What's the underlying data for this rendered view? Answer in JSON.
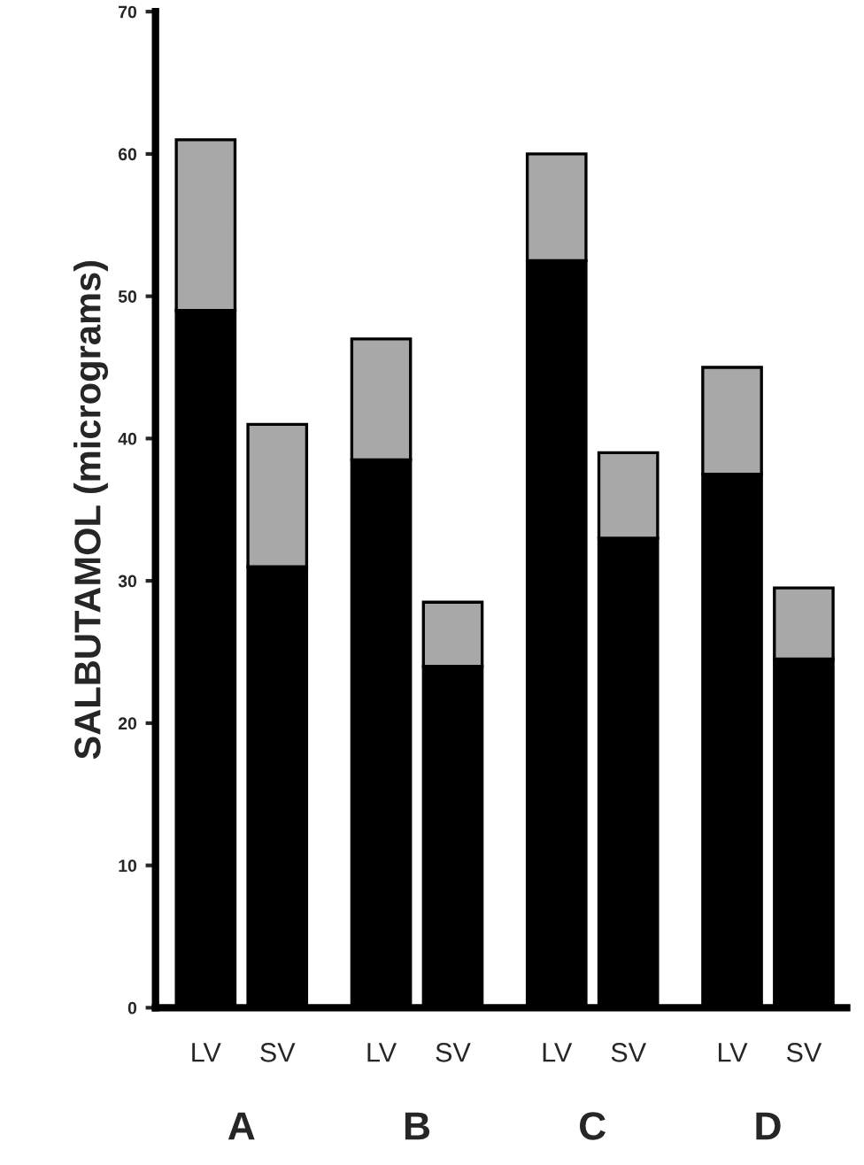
{
  "chart_data": {
    "type": "bar",
    "ylabel": "SALBUTAMOL (micrograms)",
    "categories": [
      "LV",
      "SV",
      "LV",
      "SV",
      "LV",
      "SV",
      "LV",
      "SV"
    ],
    "stacked": true,
    "series": [
      {
        "color": "#000000",
        "values": [
          49,
          31,
          38.5,
          24,
          52.5,
          33,
          37.5,
          24.5
        ]
      },
      {
        "color": "#a8a8a8",
        "values": [
          12,
          10,
          8.5,
          4.5,
          7.5,
          6,
          7.5,
          5
        ]
      }
    ],
    "annotations": [
      "A",
      "B",
      "C",
      "D"
    ],
    "ylim": [
      0,
      70
    ],
    "yticks": [
      0,
      10,
      20,
      30,
      40,
      50,
      60,
      70
    ],
    "grid": false,
    "legend": false
  }
}
